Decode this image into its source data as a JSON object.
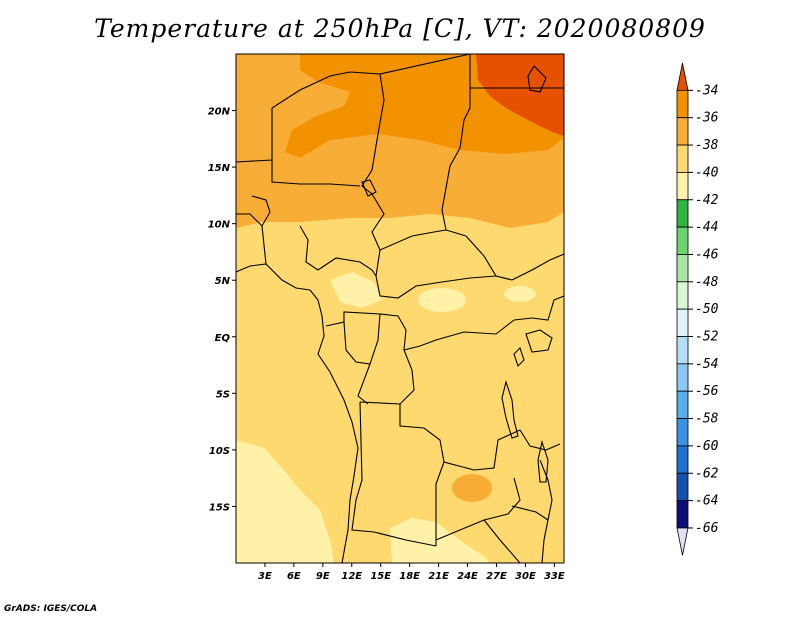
{
  "title": "Temperature at 250hPa [C], VT: 2020080809",
  "credit": "GrADS: IGES/COLA",
  "map": {
    "lon_range": [
      0,
      34
    ],
    "lat_range": [
      -20,
      25
    ],
    "lat_ticks": [
      {
        "value": 20,
        "label": "20N"
      },
      {
        "value": 15,
        "label": "15N"
      },
      {
        "value": 10,
        "label": "10N"
      },
      {
        "value": 5,
        "label": "5N"
      },
      {
        "value": 0,
        "label": "EQ"
      },
      {
        "value": -5,
        "label": "5S"
      },
      {
        "value": -10,
        "label": "10S"
      },
      {
        "value": -15,
        "label": "15S"
      }
    ],
    "lon_ticks": [
      {
        "value": 3,
        "label": "3E"
      },
      {
        "value": 6,
        "label": "6E"
      },
      {
        "value": 9,
        "label": "9E"
      },
      {
        "value": 12,
        "label": "12E"
      },
      {
        "value": 15,
        "label": "15E"
      },
      {
        "value": 18,
        "label": "18E"
      },
      {
        "value": 21,
        "label": "21E"
      },
      {
        "value": 24,
        "label": "24E"
      },
      {
        "value": 27,
        "label": "27E"
      },
      {
        "value": 30,
        "label": "30E"
      },
      {
        "value": 33,
        "label": "33E"
      }
    ]
  },
  "colorbar": {
    "labels": [
      "-34",
      "-36",
      "-38",
      "-40",
      "-42",
      "-44",
      "-46",
      "-48",
      "-50",
      "-52",
      "-54",
      "-56",
      "-58",
      "-60",
      "-62",
      "-64",
      "-66"
    ],
    "colors": [
      "#e65100",
      "#f39200",
      "#f8ad36",
      "#fed96f",
      "#fff2a8",
      "#2eb540",
      "#6ad46e",
      "#a9e8a4",
      "#d7f8d3",
      "#e1f4fb",
      "#b3def5",
      "#8ac8f1",
      "#5aaeea",
      "#3993e1",
      "#1f6fd0",
      "#1350b0",
      "#0d0e78",
      "#e1e1f6"
    ]
  }
}
